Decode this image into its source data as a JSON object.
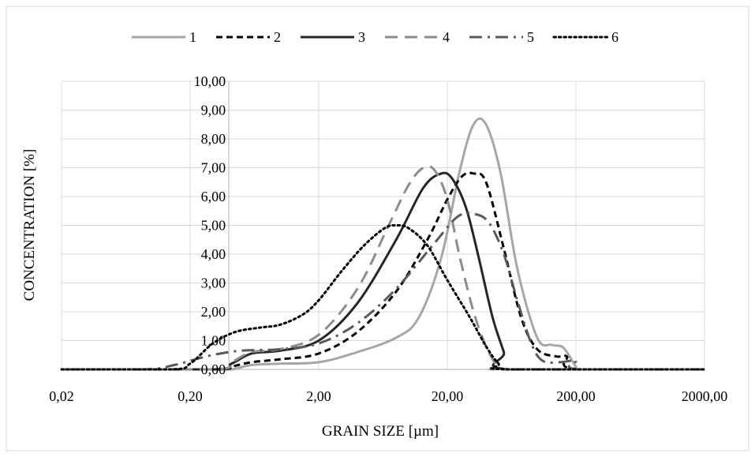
{
  "chart_data": {
    "type": "line",
    "title": "",
    "xlabel": "GRAIN SIZE [µm]",
    "ylabel": "CONCENTRATION [%]",
    "x_scale": "log",
    "xlim": [
      0.02,
      2000
    ],
    "ylim": [
      0,
      10
    ],
    "grid": true,
    "legend_position": "top",
    "x_tick_labels": [
      "0,02",
      "0,20",
      "2,00",
      "20,00",
      "200,00",
      "2000,00"
    ],
    "x_ticks": [
      0.02,
      0.2,
      2,
      20,
      200,
      2000
    ],
    "y_tick_labels": [
      "0,00",
      "1,00",
      "2,00",
      "3,00",
      "4,00",
      "5,00",
      "6,00",
      "7,00",
      "8,00",
      "9,00",
      "10,00"
    ],
    "y_ticks": [
      0,
      1,
      2,
      3,
      4,
      5,
      6,
      7,
      8,
      9,
      10
    ],
    "series": [
      {
        "name": "1",
        "color": "#a6a6a6",
        "dash": "solid",
        "x": [
          0.02,
          0.3,
          0.42,
          0.6,
          1.0,
          2.0,
          4.0,
          8.0,
          12.0,
          18.0,
          25.0,
          32.0,
          40.0,
          52.0,
          70.0,
          100.0,
          130.0,
          160.0,
          200.0,
          220.0,
          2000.0
        ],
        "y": [
          0.0,
          0.0,
          0.0,
          0.15,
          0.2,
          0.25,
          0.6,
          1.1,
          1.8,
          3.9,
          6.9,
          8.5,
          8.5,
          6.8,
          3.5,
          1.1,
          0.85,
          0.75,
          0.1,
          0.0,
          0.0
        ]
      },
      {
        "name": "2",
        "color": "#000000",
        "dash": "dash",
        "x": [
          0.02,
          0.3,
          0.42,
          0.6,
          1.0,
          2.0,
          4.0,
          8.0,
          14.0,
          20.0,
          26.0,
          32.0,
          40.0,
          55.0,
          75.0,
          100.0,
          140.0,
          170.0,
          200.0,
          2000.0
        ],
        "y": [
          0.0,
          0.0,
          0.1,
          0.25,
          0.35,
          0.55,
          1.3,
          2.7,
          4.5,
          5.9,
          6.7,
          6.8,
          6.5,
          4.2,
          1.8,
          0.7,
          0.45,
          0.45,
          0.0,
          0.0
        ]
      },
      {
        "name": "3",
        "color": "#262626",
        "dash": "solid",
        "x": [
          0.02,
          0.3,
          0.42,
          0.6,
          1.0,
          2.0,
          4.0,
          8.0,
          13.0,
          18.0,
          22.0,
          28.0,
          35.0,
          45.0,
          55.0,
          60.0,
          2000.0
        ],
        "y": [
          0.0,
          0.0,
          0.2,
          0.55,
          0.65,
          1.0,
          2.3,
          4.5,
          6.3,
          6.8,
          6.6,
          5.6,
          3.9,
          1.8,
          0.6,
          0.0,
          0.0
        ]
      },
      {
        "name": "4",
        "color": "#8c8c8c",
        "dash": "longdash",
        "x": [
          0.02,
          0.3,
          0.42,
          0.6,
          1.0,
          2.0,
          4.0,
          7.0,
          10.0,
          13.0,
          16.0,
          20.0,
          25.0,
          32.0,
          40.0,
          50.0,
          58.0,
          2000.0
        ],
        "y": [
          0.0,
          0.0,
          0.25,
          0.6,
          0.7,
          1.2,
          2.8,
          5.0,
          6.4,
          7.0,
          6.9,
          5.9,
          3.9,
          2.0,
          0.8,
          0.05,
          0.0,
          0.0
        ]
      },
      {
        "name": "5",
        "color": "#595959",
        "dash": "dashdot",
        "x": [
          0.02,
          0.09,
          0.15,
          0.2,
          0.3,
          0.5,
          1.0,
          2.0,
          4.0,
          8.0,
          16.0,
          24.0,
          32.0,
          42.0,
          55.0,
          70.0,
          90.0,
          110.0,
          150.0,
          200.0,
          210.0,
          2000.0
        ],
        "y": [
          0.0,
          0.0,
          0.15,
          0.3,
          0.5,
          0.65,
          0.7,
          0.9,
          1.6,
          2.8,
          4.4,
          5.3,
          5.4,
          5.1,
          4.0,
          2.4,
          0.9,
          0.3,
          0.25,
          0.3,
          0.0,
          0.0
        ]
      },
      {
        "name": "6",
        "color": "#000000",
        "dash": "dot",
        "x": [
          0.02,
          0.14,
          0.2,
          0.3,
          0.45,
          0.7,
          1.0,
          1.5,
          2.0,
          3.0,
          4.5,
          6.5,
          8.0,
          10.0,
          14.0,
          20.0,
          30.0,
          40.0,
          50.0,
          60.0,
          2000.0
        ],
        "y": [
          0.0,
          0.0,
          0.2,
          0.9,
          1.3,
          1.45,
          1.55,
          1.9,
          2.4,
          3.4,
          4.3,
          4.9,
          5.0,
          4.9,
          4.3,
          3.1,
          1.8,
          0.8,
          0.2,
          0.0,
          0.0
        ]
      }
    ]
  }
}
